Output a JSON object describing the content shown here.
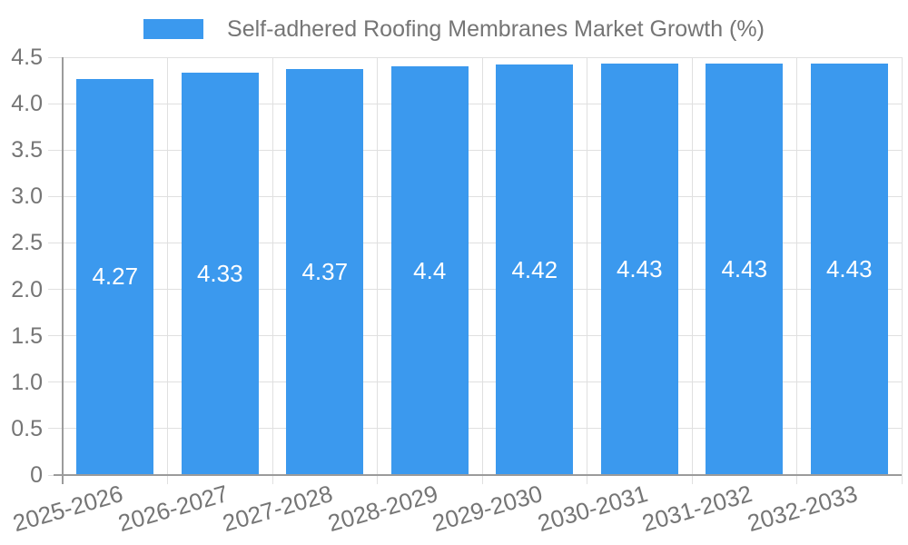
{
  "legend": {
    "label": "Self-adhered Roofing Membranes Market Growth (%)"
  },
  "chart_data": {
    "type": "bar",
    "title": "Self-adhered Roofing Membranes Market Growth (%)",
    "categories": [
      "2025-2026",
      "2026-2027",
      "2027-2028",
      "2028-2029",
      "2029-2030",
      "2030-2031",
      "2031-2032",
      "2032-2033"
    ],
    "values": [
      4.27,
      4.33,
      4.37,
      4.4,
      4.42,
      4.43,
      4.43,
      4.43
    ],
    "value_labels": [
      "4.27",
      "4.33",
      "4.37",
      "4.4",
      "4.42",
      "4.43",
      "4.43",
      "4.43"
    ],
    "xlabel": "",
    "ylabel": "",
    "ylim": [
      0,
      4.5
    ],
    "ytick_step": 0.5,
    "ytick_labels": [
      "0",
      "0.5",
      "1.0",
      "1.5",
      "2.0",
      "2.5",
      "3.0",
      "3.5",
      "4.0",
      "4.5"
    ],
    "grid": true,
    "legend_position": "top",
    "bar_color": "#3b99ee",
    "value_label_color": "#ffffff",
    "grid_color": "#e0e0e0",
    "axis_color": "#9b9b9b",
    "tick_text_color": "#757575"
  }
}
